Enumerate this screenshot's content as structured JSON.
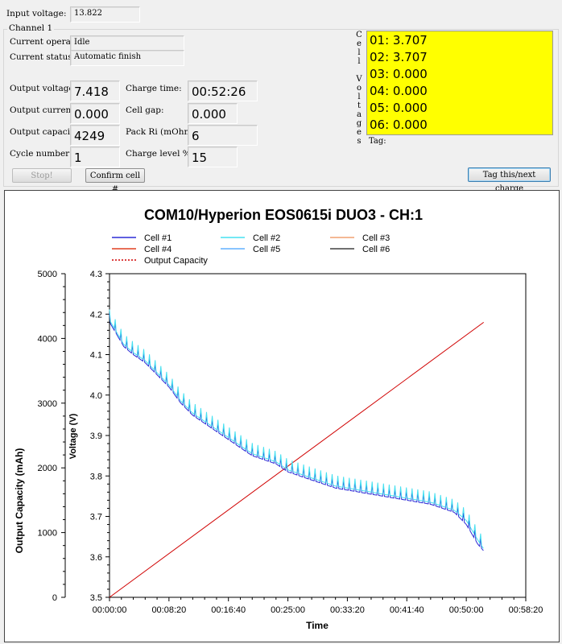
{
  "top": {
    "input_voltage_label": "Input voltage:",
    "input_voltage_value": "13.822",
    "channel_label": "Channel 1"
  },
  "status": {
    "current_operation_label": "Current operation:",
    "current_operation_value": "Idle",
    "current_status_label": "Current status:",
    "current_status_value": "Automatic finish"
  },
  "readings": {
    "output_voltage_label": "Output voltage:",
    "output_voltage_value": "7.418",
    "output_current_label": "Output current:",
    "output_current_value": "0.000",
    "output_capacity_label": "Output capacity:",
    "output_capacity_value": "4249",
    "cycle_number_label": "Cycle number:",
    "cycle_number_value": "1",
    "charge_time_label": "Charge time:",
    "charge_time_value": "00:52:26",
    "cell_gap_label": "Cell gap:",
    "cell_gap_value": "0.000",
    "pack_ri_label": "Pack Ri (mOhm)",
    "pack_ri_value": "6",
    "charge_level_label": "Charge level %",
    "charge_level_value": "15"
  },
  "cell_voltages": {
    "vertical_label": [
      "C",
      "e",
      "l",
      "l",
      "",
      "V",
      "o",
      "l",
      "t",
      "a",
      "g",
      "e",
      "s"
    ],
    "rows": [
      "01: 3.707",
      "02: 3.707",
      "03: 0.000",
      "04: 0.000",
      "05: 0.000",
      "06: 0.000"
    ],
    "panel_color": "#ffff00",
    "tag_label": "Tag:"
  },
  "buttons": {
    "stop_label": "Stop!",
    "confirm_label": "Confirm cell #",
    "tag_label": "Tag this/next charge"
  },
  "chart_data": {
    "type": "line",
    "title": "COM10/Hyperion EOS0615i DUO3 - CH:1",
    "xlabel": "Time",
    "ylabel_left": "Output Capacity (mAh)",
    "ylabel_right": "Voltage (V)",
    "x_ticks": [
      "00:00:00",
      "00:08:20",
      "00:16:40",
      "00:25:00",
      "00:33:20",
      "00:41:40",
      "00:50:00",
      "00:58:20"
    ],
    "x_range_seconds": [
      0,
      3500
    ],
    "capacity_ticks": [
      "0",
      "1000",
      "2000",
      "3000",
      "4000",
      "5000"
    ],
    "capacity_range": [
      0,
      5000
    ],
    "voltage_ticks": [
      "3.5",
      "3.6",
      "3.7",
      "3.8",
      "3.9",
      "4.0",
      "4.1",
      "4.2",
      "4.3"
    ],
    "voltage_range": [
      3.5,
      4.3
    ],
    "grid": false,
    "legend": [
      {
        "name": "Cell #1",
        "color": "#2b2bd6",
        "style": "solid"
      },
      {
        "name": "Cell #2",
        "color": "#45e0f0",
        "style": "solid"
      },
      {
        "name": "Cell #3",
        "color": "#f0a070",
        "style": "solid"
      },
      {
        "name": "Cell #4",
        "color": "#e04020",
        "style": "solid"
      },
      {
        "name": "Cell #5",
        "color": "#60b0ff",
        "style": "solid"
      },
      {
        "name": "Cell #6",
        "color": "#404040",
        "style": "solid"
      },
      {
        "name": "Output Capacity",
        "color": "#d00000",
        "style": "dotted"
      }
    ],
    "series": [
      {
        "name": "Output Capacity",
        "axis": "left",
        "x": [
          0,
          3146
        ],
        "y": [
          0,
          4249
        ]
      },
      {
        "name": "Cell #1",
        "axis": "right",
        "x": [
          0,
          60,
          120,
          200,
          300,
          400,
          500,
          600,
          700,
          800,
          900,
          1000,
          1100,
          1200,
          1300,
          1400,
          1500,
          1600,
          1700,
          1800,
          1900,
          2000,
          2100,
          2200,
          2300,
          2400,
          2500,
          2600,
          2700,
          2800,
          2900,
          3000,
          3100,
          3146
        ],
        "y": [
          4.18,
          4.15,
          4.12,
          4.1,
          4.08,
          4.05,
          4.02,
          3.98,
          3.95,
          3.93,
          3.91,
          3.89,
          3.87,
          3.85,
          3.84,
          3.83,
          3.81,
          3.8,
          3.79,
          3.78,
          3.77,
          3.765,
          3.76,
          3.755,
          3.75,
          3.745,
          3.74,
          3.735,
          3.73,
          3.72,
          3.71,
          3.68,
          3.63,
          3.615
        ]
      },
      {
        "name": "Cell #2",
        "axis": "right",
        "x": [
          0,
          60,
          120,
          200,
          300,
          400,
          500,
          600,
          700,
          800,
          900,
          1000,
          1100,
          1200,
          1300,
          1400,
          1500,
          1600,
          1700,
          1800,
          1900,
          2000,
          2100,
          2200,
          2300,
          2400,
          2500,
          2600,
          2700,
          2800,
          2900,
          3000,
          3100,
          3146
        ],
        "y": [
          4.185,
          4.155,
          4.125,
          4.105,
          4.085,
          4.055,
          4.025,
          3.985,
          3.955,
          3.935,
          3.915,
          3.895,
          3.875,
          3.855,
          3.845,
          3.835,
          3.815,
          3.805,
          3.795,
          3.785,
          3.775,
          3.77,
          3.765,
          3.76,
          3.755,
          3.75,
          3.745,
          3.74,
          3.735,
          3.725,
          3.715,
          3.69,
          3.64,
          3.62
        ]
      }
    ]
  }
}
